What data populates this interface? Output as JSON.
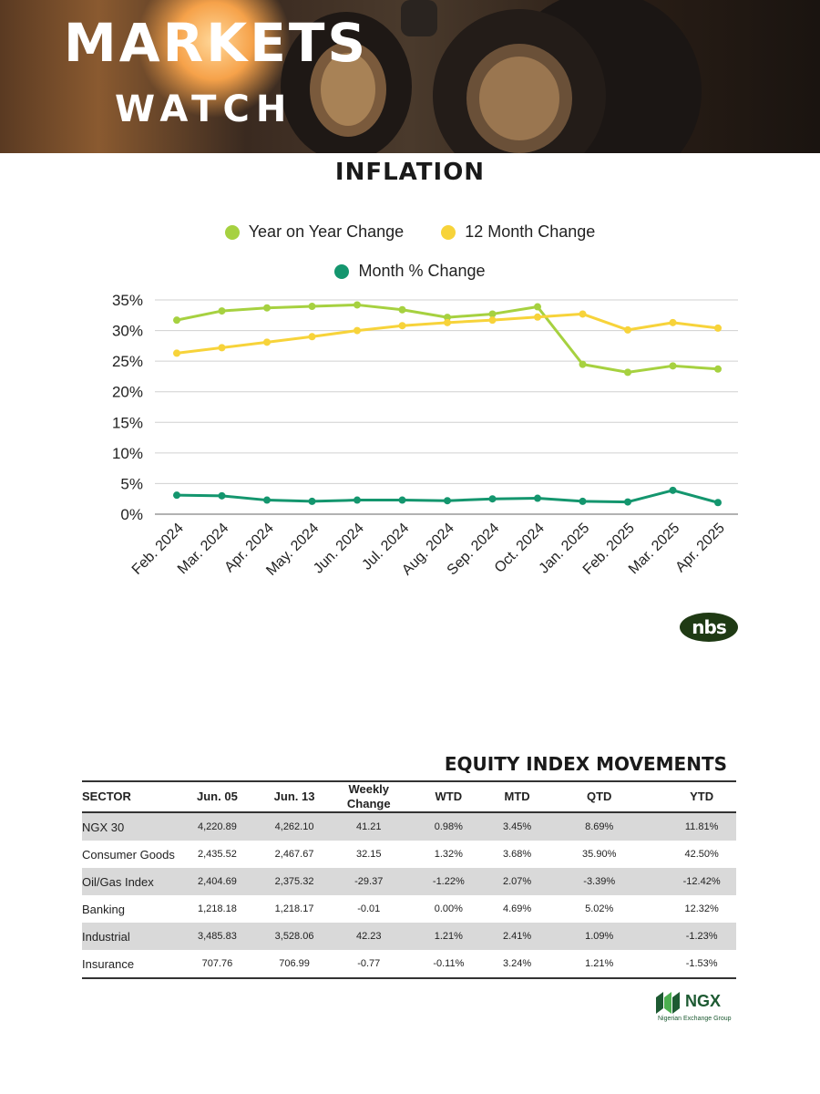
{
  "header": {
    "title": "MARKETS",
    "subtitle": "WATCH"
  },
  "inflation": {
    "title": "INFLATION"
  },
  "chart_data": {
    "type": "line",
    "title": "INFLATION",
    "categories": [
      "Feb. 2024",
      "Mar. 2024",
      "Apr. 2024",
      "May. 2024",
      "Jun. 2024",
      "Jul. 2024",
      "Aug. 2024",
      "Sep. 2024",
      "Oct. 2024",
      "Jan. 2025",
      "Feb. 2025",
      "Mar. 2025",
      "Apr. 2025"
    ],
    "series": [
      {
        "name": "Year on Year Change",
        "color": "#a6d140",
        "values": [
          31.7,
          33.2,
          33.7,
          33.95,
          34.19,
          33.4,
          32.15,
          32.7,
          33.88,
          24.48,
          23.18,
          24.23,
          23.71
        ]
      },
      {
        "name": "12 Month Change",
        "color": "#f7d33a",
        "values": [
          26.3,
          27.2,
          28.1,
          29.0,
          30.0,
          30.8,
          31.3,
          31.7,
          32.2,
          32.7,
          30.1,
          31.3,
          30.4
        ]
      },
      {
        "name": "Month % Change",
        "color": "#14966e",
        "values": [
          3.1,
          3.0,
          2.3,
          2.1,
          2.3,
          2.3,
          2.2,
          2.5,
          2.6,
          2.1,
          2.0,
          3.9,
          1.9
        ]
      }
    ],
    "y_ticks": [
      "0%",
      "5%",
      "10%",
      "15%",
      "20%",
      "25%",
      "30%",
      "35%"
    ],
    "ylim": [
      0,
      35
    ],
    "grid": true,
    "legend_position": "top"
  },
  "source_logo": {
    "text": "nbs"
  },
  "equity": {
    "title": "EQUITY INDEX MOVEMENTS",
    "headers": {
      "sector": "SECTOR",
      "jun05": "Jun. 05",
      "jun13": "Jun. 13",
      "weekly_1": "Weekly",
      "weekly_2": "Change",
      "wtd": "WTD",
      "mtd": "MTD",
      "qtd": "QTD",
      "ytd": "YTD"
    },
    "rows": [
      {
        "sector": "NGX 30",
        "jun05": "4,220.89",
        "jun13": "4,262.10",
        "weekly": "41.21",
        "wtd": "0.98%",
        "mtd": "3.45%",
        "qtd": "8.69%",
        "ytd": "11.81%"
      },
      {
        "sector": "Consumer Goods",
        "jun05": "2,435.52",
        "jun13": "2,467.67",
        "weekly": "32.15",
        "wtd": "1.32%",
        "mtd": "3.68%",
        "qtd": "35.90%",
        "ytd": "42.50%"
      },
      {
        "sector": "Oil/Gas Index",
        "jun05": "2,404.69",
        "jun13": "2,375.32",
        "weekly": "-29.37",
        "wtd": "-1.22%",
        "mtd": "2.07%",
        "qtd": "-3.39%",
        "ytd": "-12.42%"
      },
      {
        "sector": "Banking",
        "jun05": "1,218.18",
        "jun13": "1,218.17",
        "weekly": "-0.01",
        "wtd": "0.00%",
        "mtd": "4.69%",
        "qtd": "5.02%",
        "ytd": "12.32%"
      },
      {
        "sector": "Industrial",
        "jun05": "3,485.83",
        "jun13": "3,528.06",
        "weekly": "42.23",
        "wtd": "1.21%",
        "mtd": "2.41%",
        "qtd": "1.09%",
        "ytd": "-1.23%"
      },
      {
        "sector": "Insurance",
        "jun05": "707.76",
        "jun13": "706.99",
        "weekly": "-0.77",
        "wtd": "-0.11%",
        "mtd": "3.24%",
        "qtd": "1.21%",
        "ytd": "-1.53%"
      }
    ]
  },
  "footer_logo": {
    "name": "NGX",
    "tagline": "Nigerian Exchange Group"
  }
}
